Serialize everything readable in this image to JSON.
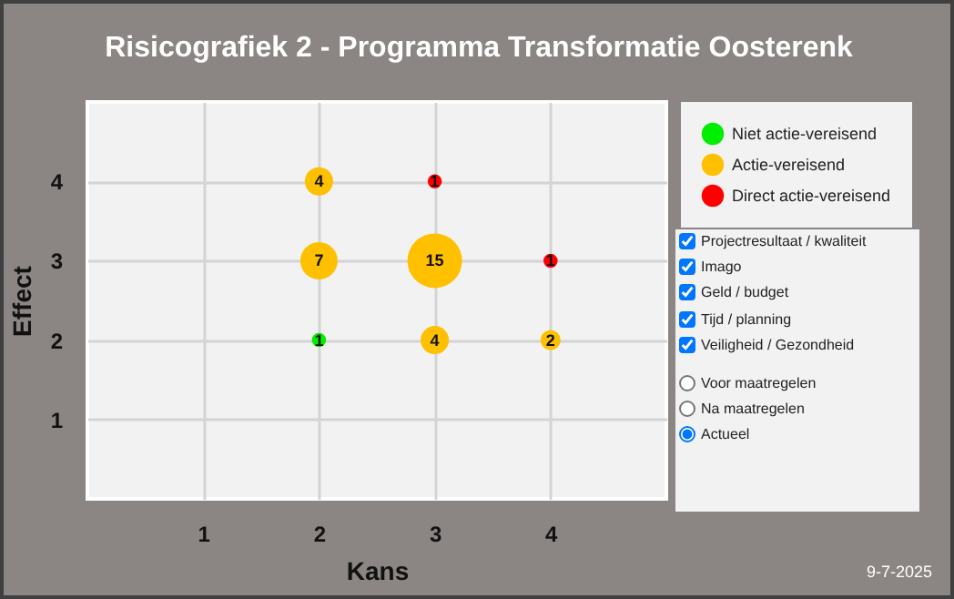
{
  "chart_data": {
    "type": "bubble",
    "title": "Risicografiek 2 - Programma Transformatie Oosterenk",
    "xlabel": "Kans",
    "ylabel": "Effect",
    "xlim": [
      0,
      5
    ],
    "xticks": [
      1,
      2,
      3,
      4
    ],
    "ylim": [
      0,
      5
    ],
    "yticks": [
      1,
      2,
      3,
      4
    ],
    "grid": true,
    "legend": "right",
    "series": [
      {
        "name": "Niet actie-vereisend",
        "color": "#00ee00",
        "x": [
          2
        ],
        "values": [
          2
        ],
        "sizes": [
          0.067
        ]
      },
      {
        "name": "Actie-vereisend",
        "color": "#ffc000",
        "x": [
          2,
          2,
          3,
          3,
          4
        ],
        "values": [
          4,
          3,
          3,
          2,
          2
        ],
        "sizes": [
          0.267,
          0.467,
          1,
          0.267,
          0.133
        ]
      },
      {
        "name": "Direct actie-vereisend",
        "color": "#ff0000",
        "x": [
          3,
          4
        ],
        "values": [
          4,
          3
        ],
        "sizes": [
          0.067,
          0.067
        ]
      }
    ],
    "annotations": [
      {
        "text": "1",
        "x": 2,
        "y": 2
      },
      {
        "text": "4",
        "x": 2,
        "y": 4
      },
      {
        "text": "7",
        "x": 2,
        "y": 3
      },
      {
        "text": "15",
        "x": 3,
        "y": 3
      },
      {
        "text": "4",
        "x": 3,
        "y": 2
      },
      {
        "text": "2",
        "x": 4,
        "y": 2
      },
      {
        "text": "1",
        "x": 3,
        "y": 4
      },
      {
        "text": "1",
        "x": 4,
        "y": 3
      },
      "Projectresultaat / kwaliteit",
      "Imago",
      "Geld / budget",
      "Tijd / planning",
      "Veiligheid / Gezondheid",
      "Voor maatregelen",
      "Na maatregelen",
      "Actueel",
      "9-7-2025"
    ]
  }
}
